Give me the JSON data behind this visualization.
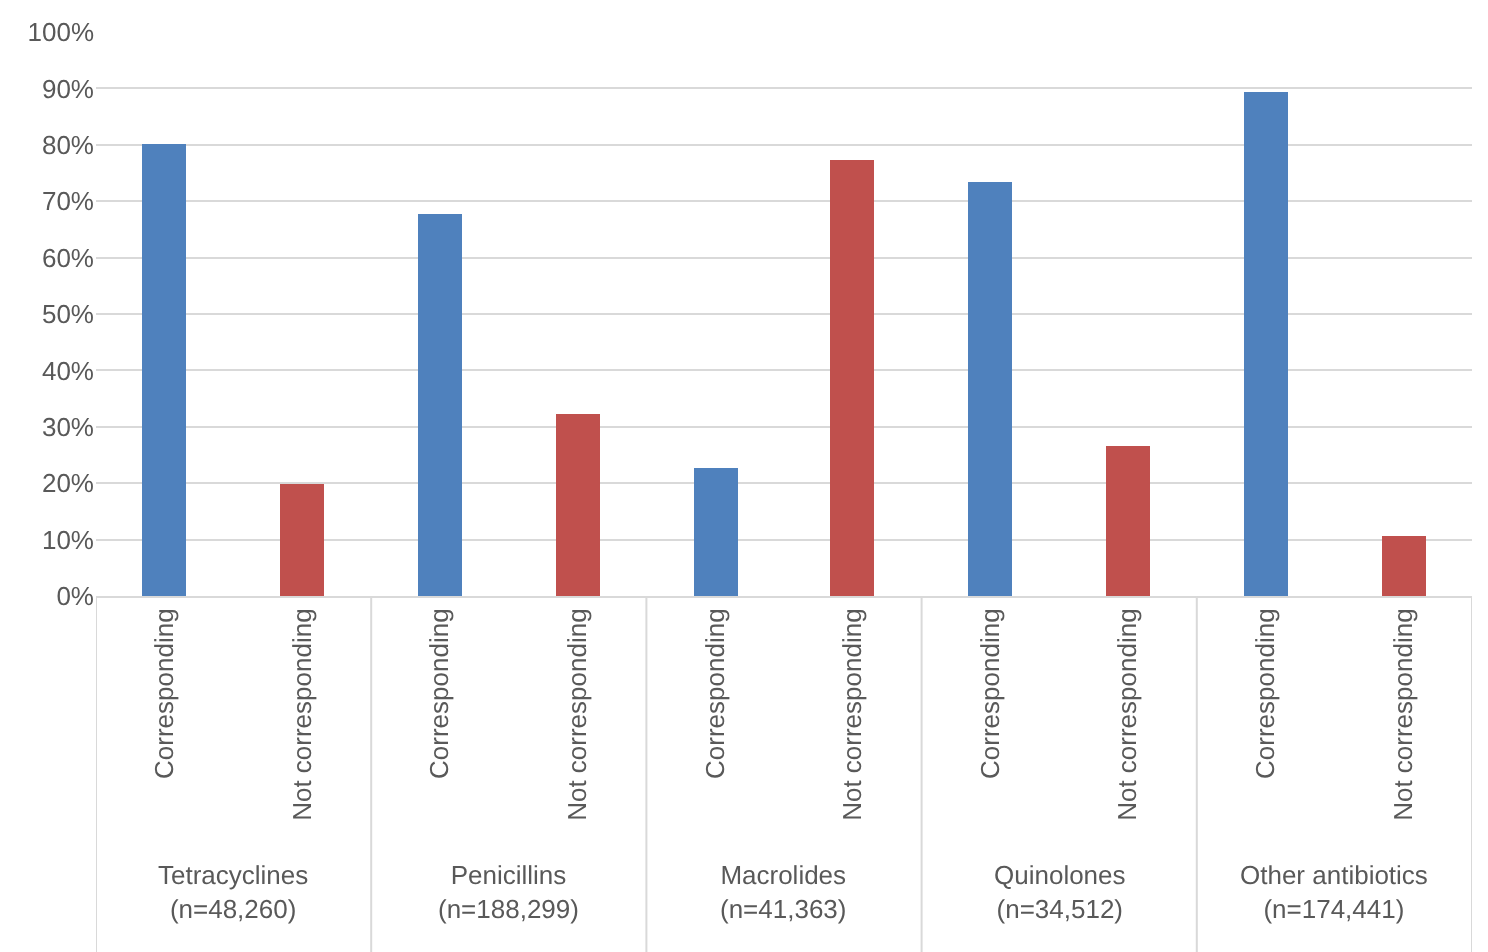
{
  "chart_data": {
    "type": "bar",
    "categories": [
      "Corresponding",
      "Not corresponding",
      "Corresponding",
      "Not corresponding",
      "Corresponding",
      "Not corresponding",
      "Corresponding",
      "Not corresponding",
      "Corresponding",
      "Not corresponding"
    ],
    "values": [
      80,
      20,
      67.6,
      32.4,
      22.8,
      77.2,
      73.4,
      26.6,
      89.2,
      10.8
    ],
    "colors": [
      "#4f81bd",
      "#c0504d",
      "#4f81bd",
      "#c0504d",
      "#4f81bd",
      "#c0504d",
      "#4f81bd",
      "#c0504d",
      "#4f81bd",
      "#c0504d"
    ],
    "annotations": [
      "Tetracyclines\n(n=48,260)",
      "Penicillins\n(n=188,299)",
      "Macrolides\n(n=41,363)",
      "Quinolones\n(n=34,512)",
      "Other antibiotics\n(n=174,441)"
    ],
    "ylim": [
      0,
      100
    ],
    "yticks": [
      {
        "value": 0,
        "label": "0%"
      },
      {
        "value": 10,
        "label": "10%"
      },
      {
        "value": 20,
        "label": "20%"
      },
      {
        "value": 30,
        "label": "30%"
      },
      {
        "value": 40,
        "label": "40%"
      },
      {
        "value": 50,
        "label": "50%"
      },
      {
        "value": 60,
        "label": "60%"
      },
      {
        "value": 70,
        "label": "70%"
      },
      {
        "value": 80,
        "label": "80%"
      },
      {
        "value": 90,
        "label": "90%"
      },
      {
        "value": 100,
        "label": "100%"
      }
    ],
    "grid": "y"
  }
}
